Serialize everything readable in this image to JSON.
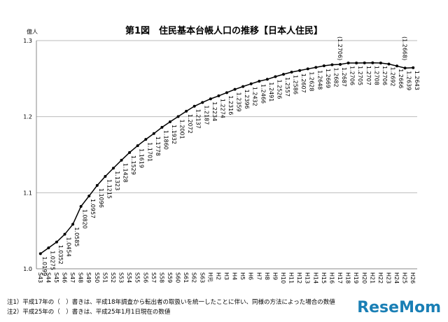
{
  "chart_data": {
    "type": "line",
    "title": "第1図　住民基本台帳人口の推移【日本人住民】",
    "y_unit": "億人",
    "categories": [
      "S43",
      "S44",
      "S45",
      "S46",
      "S47",
      "S48",
      "S49",
      "S50",
      "S51",
      "S52",
      "S53",
      "S54",
      "S55",
      "S56",
      "S57",
      "S58",
      "S59",
      "S60",
      "S61",
      "S62",
      "S63",
      "H元",
      "H2",
      "H3",
      "H4",
      "H5",
      "H6",
      "H7",
      "H8",
      "H9",
      "H10",
      "H11",
      "H12",
      "H13",
      "H14",
      "H15",
      "H16",
      "H17",
      "H18",
      "H19",
      "H20",
      "H21",
      "H22",
      "H23",
      "H24",
      "H25",
      "H26"
    ],
    "series": [
      {
        "color": "#000000",
        "values": [
          1.0199,
          1.0275,
          1.0352,
          1.0454,
          1.0585,
          1.082,
          1.0957,
          1.1096,
          1.1215,
          1.1323,
          1.1428,
          1.1529,
          1.1619,
          1.1701,
          1.1778,
          1.186,
          1.1932,
          1.2001,
          1.2072,
          1.2137,
          1.2187,
          1.2234,
          1.2274,
          1.2316,
          1.2359,
          1.2396,
          1.2432,
          1.2466,
          1.2491,
          1.2526,
          1.2557,
          1.2586,
          1.2607,
          1.2628,
          1.2648,
          1.2669,
          1.2682,
          1.2687,
          1.2706,
          1.2705,
          1.2707,
          1.2708,
          1.2706,
          1.2692,
          1.2666,
          1.2639,
          1.2643
        ],
        "value_labels": [
          "1.0199",
          "1.0275",
          "1.0352",
          "1.0454",
          "1.0585",
          "1.0820",
          "1.0957",
          "1.1096",
          "1.1215",
          "1.1323",
          "1.1428",
          "1.1529",
          "1.1619",
          "1.1701",
          "1.1778",
          "1.1860",
          "1.1932",
          "1.2001",
          "1.2072",
          "1.2137",
          "1.2187",
          "1.2234",
          "1.2274",
          "1.2316",
          "1.2359",
          "1.2396",
          "1.2432",
          "1.2466",
          "1.2491",
          "1.2526",
          "1.2557",
          "1.2586",
          "1.2607",
          "1.2628",
          "1.2648",
          "1.2669",
          "1.2682",
          "1.2687",
          "1.2706",
          "1.2705",
          "1.2707",
          "1.2708",
          "1.2706",
          "1.2692",
          "1.2666",
          "1.2639",
          "1.2643"
        ]
      }
    ],
    "annotations": [
      {
        "category": "H17",
        "text": "(1.2706)"
      },
      {
        "category": "H25",
        "text": "(1.2668)"
      }
    ],
    "ylim": [
      1.0,
      1.3
    ],
    "yticks": [
      {
        "value": 1,
        "label": "1.0"
      },
      1.1,
      1.2,
      1.3
    ],
    "grid": true,
    "notes": [
      "注1）平成17年の（　）書きは、平成18年調査から転出者の取扱いを統一したことに伴い、同様の方法によった場合の数値",
      "注2）平成25年の（　）書きは、平成25年1月1日現在の数値"
    ],
    "watermark": "ReseMom"
  }
}
